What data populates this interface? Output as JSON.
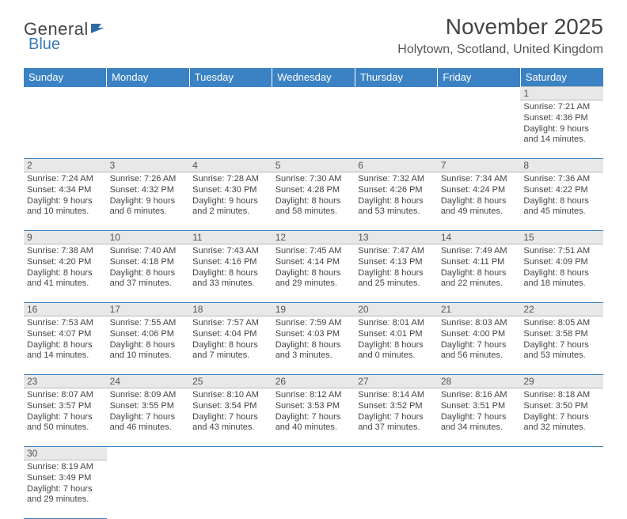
{
  "brand": {
    "part1": "General",
    "part2": "Blue"
  },
  "title": "November 2025",
  "location": "Holytown, Scotland, United Kingdom",
  "colors": {
    "header_bg": "#3b82c4",
    "header_text": "#ffffff",
    "daynum_bg": "#e8e8e8",
    "border": "#3b82c4",
    "text": "#444444",
    "logo_blue": "#3a7ab8"
  },
  "typography": {
    "title_pt": 28,
    "location_pt": 16,
    "dayhead_pt": 13,
    "cell_pt": 11
  },
  "weekdays": [
    "Sunday",
    "Monday",
    "Tuesday",
    "Wednesday",
    "Thursday",
    "Friday",
    "Saturday"
  ],
  "weeks": [
    {
      "nums": [
        "",
        "",
        "",
        "",
        "",
        "",
        "1"
      ],
      "cells": [
        null,
        null,
        null,
        null,
        null,
        null,
        {
          "sunrise": "Sunrise: 7:21 AM",
          "sunset": "Sunset: 4:36 PM",
          "day1": "Daylight: 9 hours",
          "day2": "and 14 minutes."
        }
      ]
    },
    {
      "nums": [
        "2",
        "3",
        "4",
        "5",
        "6",
        "7",
        "8"
      ],
      "cells": [
        {
          "sunrise": "Sunrise: 7:24 AM",
          "sunset": "Sunset: 4:34 PM",
          "day1": "Daylight: 9 hours",
          "day2": "and 10 minutes."
        },
        {
          "sunrise": "Sunrise: 7:26 AM",
          "sunset": "Sunset: 4:32 PM",
          "day1": "Daylight: 9 hours",
          "day2": "and 6 minutes."
        },
        {
          "sunrise": "Sunrise: 7:28 AM",
          "sunset": "Sunset: 4:30 PM",
          "day1": "Daylight: 9 hours",
          "day2": "and 2 minutes."
        },
        {
          "sunrise": "Sunrise: 7:30 AM",
          "sunset": "Sunset: 4:28 PM",
          "day1": "Daylight: 8 hours",
          "day2": "and 58 minutes."
        },
        {
          "sunrise": "Sunrise: 7:32 AM",
          "sunset": "Sunset: 4:26 PM",
          "day1": "Daylight: 8 hours",
          "day2": "and 53 minutes."
        },
        {
          "sunrise": "Sunrise: 7:34 AM",
          "sunset": "Sunset: 4:24 PM",
          "day1": "Daylight: 8 hours",
          "day2": "and 49 minutes."
        },
        {
          "sunrise": "Sunrise: 7:36 AM",
          "sunset": "Sunset: 4:22 PM",
          "day1": "Daylight: 8 hours",
          "day2": "and 45 minutes."
        }
      ]
    },
    {
      "nums": [
        "9",
        "10",
        "11",
        "12",
        "13",
        "14",
        "15"
      ],
      "cells": [
        {
          "sunrise": "Sunrise: 7:38 AM",
          "sunset": "Sunset: 4:20 PM",
          "day1": "Daylight: 8 hours",
          "day2": "and 41 minutes."
        },
        {
          "sunrise": "Sunrise: 7:40 AM",
          "sunset": "Sunset: 4:18 PM",
          "day1": "Daylight: 8 hours",
          "day2": "and 37 minutes."
        },
        {
          "sunrise": "Sunrise: 7:43 AM",
          "sunset": "Sunset: 4:16 PM",
          "day1": "Daylight: 8 hours",
          "day2": "and 33 minutes."
        },
        {
          "sunrise": "Sunrise: 7:45 AM",
          "sunset": "Sunset: 4:14 PM",
          "day1": "Daylight: 8 hours",
          "day2": "and 29 minutes."
        },
        {
          "sunrise": "Sunrise: 7:47 AM",
          "sunset": "Sunset: 4:13 PM",
          "day1": "Daylight: 8 hours",
          "day2": "and 25 minutes."
        },
        {
          "sunrise": "Sunrise: 7:49 AM",
          "sunset": "Sunset: 4:11 PM",
          "day1": "Daylight: 8 hours",
          "day2": "and 22 minutes."
        },
        {
          "sunrise": "Sunrise: 7:51 AM",
          "sunset": "Sunset: 4:09 PM",
          "day1": "Daylight: 8 hours",
          "day2": "and 18 minutes."
        }
      ]
    },
    {
      "nums": [
        "16",
        "17",
        "18",
        "19",
        "20",
        "21",
        "22"
      ],
      "cells": [
        {
          "sunrise": "Sunrise: 7:53 AM",
          "sunset": "Sunset: 4:07 PM",
          "day1": "Daylight: 8 hours",
          "day2": "and 14 minutes."
        },
        {
          "sunrise": "Sunrise: 7:55 AM",
          "sunset": "Sunset: 4:06 PM",
          "day1": "Daylight: 8 hours",
          "day2": "and 10 minutes."
        },
        {
          "sunrise": "Sunrise: 7:57 AM",
          "sunset": "Sunset: 4:04 PM",
          "day1": "Daylight: 8 hours",
          "day2": "and 7 minutes."
        },
        {
          "sunrise": "Sunrise: 7:59 AM",
          "sunset": "Sunset: 4:03 PM",
          "day1": "Daylight: 8 hours",
          "day2": "and 3 minutes."
        },
        {
          "sunrise": "Sunrise: 8:01 AM",
          "sunset": "Sunset: 4:01 PM",
          "day1": "Daylight: 8 hours",
          "day2": "and 0 minutes."
        },
        {
          "sunrise": "Sunrise: 8:03 AM",
          "sunset": "Sunset: 4:00 PM",
          "day1": "Daylight: 7 hours",
          "day2": "and 56 minutes."
        },
        {
          "sunrise": "Sunrise: 8:05 AM",
          "sunset": "Sunset: 3:58 PM",
          "day1": "Daylight: 7 hours",
          "day2": "and 53 minutes."
        }
      ]
    },
    {
      "nums": [
        "23",
        "24",
        "25",
        "26",
        "27",
        "28",
        "29"
      ],
      "cells": [
        {
          "sunrise": "Sunrise: 8:07 AM",
          "sunset": "Sunset: 3:57 PM",
          "day1": "Daylight: 7 hours",
          "day2": "and 50 minutes."
        },
        {
          "sunrise": "Sunrise: 8:09 AM",
          "sunset": "Sunset: 3:55 PM",
          "day1": "Daylight: 7 hours",
          "day2": "and 46 minutes."
        },
        {
          "sunrise": "Sunrise: 8:10 AM",
          "sunset": "Sunset: 3:54 PM",
          "day1": "Daylight: 7 hours",
          "day2": "and 43 minutes."
        },
        {
          "sunrise": "Sunrise: 8:12 AM",
          "sunset": "Sunset: 3:53 PM",
          "day1": "Daylight: 7 hours",
          "day2": "and 40 minutes."
        },
        {
          "sunrise": "Sunrise: 8:14 AM",
          "sunset": "Sunset: 3:52 PM",
          "day1": "Daylight: 7 hours",
          "day2": "and 37 minutes."
        },
        {
          "sunrise": "Sunrise: 8:16 AM",
          "sunset": "Sunset: 3:51 PM",
          "day1": "Daylight: 7 hours",
          "day2": "and 34 minutes."
        },
        {
          "sunrise": "Sunrise: 8:18 AM",
          "sunset": "Sunset: 3:50 PM",
          "day1": "Daylight: 7 hours",
          "day2": "and 32 minutes."
        }
      ]
    },
    {
      "nums": [
        "30",
        "",
        "",
        "",
        "",
        "",
        ""
      ],
      "cells": [
        {
          "sunrise": "Sunrise: 8:19 AM",
          "sunset": "Sunset: 3:49 PM",
          "day1": "Daylight: 7 hours",
          "day2": "and 29 minutes."
        },
        null,
        null,
        null,
        null,
        null,
        null
      ]
    }
  ]
}
